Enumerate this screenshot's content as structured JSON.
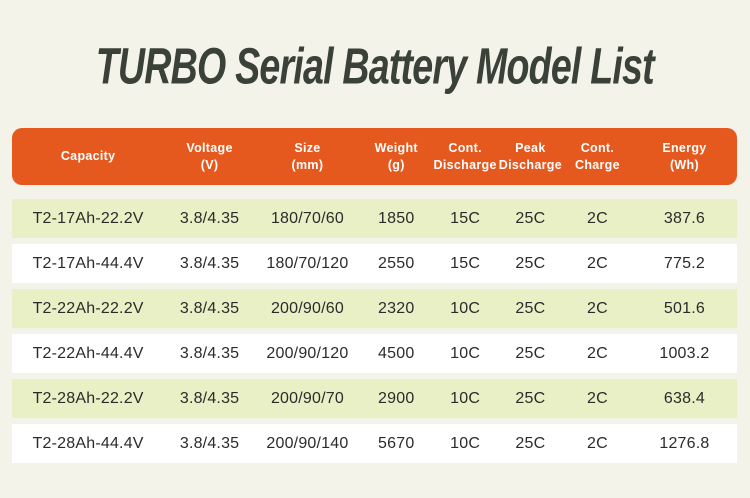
{
  "page": {
    "title": "TURBO Serial Battery Model List"
  },
  "colors": {
    "page_background": "#f4f3e9",
    "title_text": "#3a4138",
    "header_background": "#e5591f",
    "header_text": "#ffffff",
    "row_even_background": "#e9f0c6",
    "row_odd_background": "#ffffff",
    "cell_text": "#2b2b2b"
  },
  "table": {
    "columns": [
      {
        "key": "capacity",
        "label": "Capacity"
      },
      {
        "key": "voltage",
        "label": "Voltage\n(V)"
      },
      {
        "key": "size",
        "label": "Size\n(mm)"
      },
      {
        "key": "weight",
        "label": "Weight\n(g)"
      },
      {
        "key": "cont_discharge",
        "label": "Cont.\nDischarge"
      },
      {
        "key": "peak_discharge",
        "label": "Peak\nDischarge"
      },
      {
        "key": "cont_charge",
        "label": "Cont.\nCharge"
      },
      {
        "key": "energy",
        "label": "Energy\n(Wh)"
      }
    ],
    "rows": [
      [
        "T2-17Ah-22.2V",
        "3.8/4.35",
        "180/70/60",
        "1850",
        "15C",
        "25C",
        "2C",
        "387.6"
      ],
      [
        "T2-17Ah-44.4V",
        "3.8/4.35",
        "180/70/120",
        "2550",
        "15C",
        "25C",
        "2C",
        "775.2"
      ],
      [
        "T2-22Ah-22.2V",
        "3.8/4.35",
        "200/90/60",
        "2320",
        "10C",
        "25C",
        "2C",
        "501.6"
      ],
      [
        "T2-22Ah-44.4V",
        "3.8/4.35",
        "200/90/120",
        "4500",
        "10C",
        "25C",
        "2C",
        "1003.2"
      ],
      [
        "T2-28Ah-22.2V",
        "3.8/4.35",
        "200/90/70",
        "2900",
        "10C",
        "25C",
        "2C",
        "638.4"
      ],
      [
        "T2-28Ah-44.4V",
        "3.8/4.35",
        "200/90/140",
        "5670",
        "10C",
        "25C",
        "2C",
        "1276.8"
      ]
    ]
  }
}
